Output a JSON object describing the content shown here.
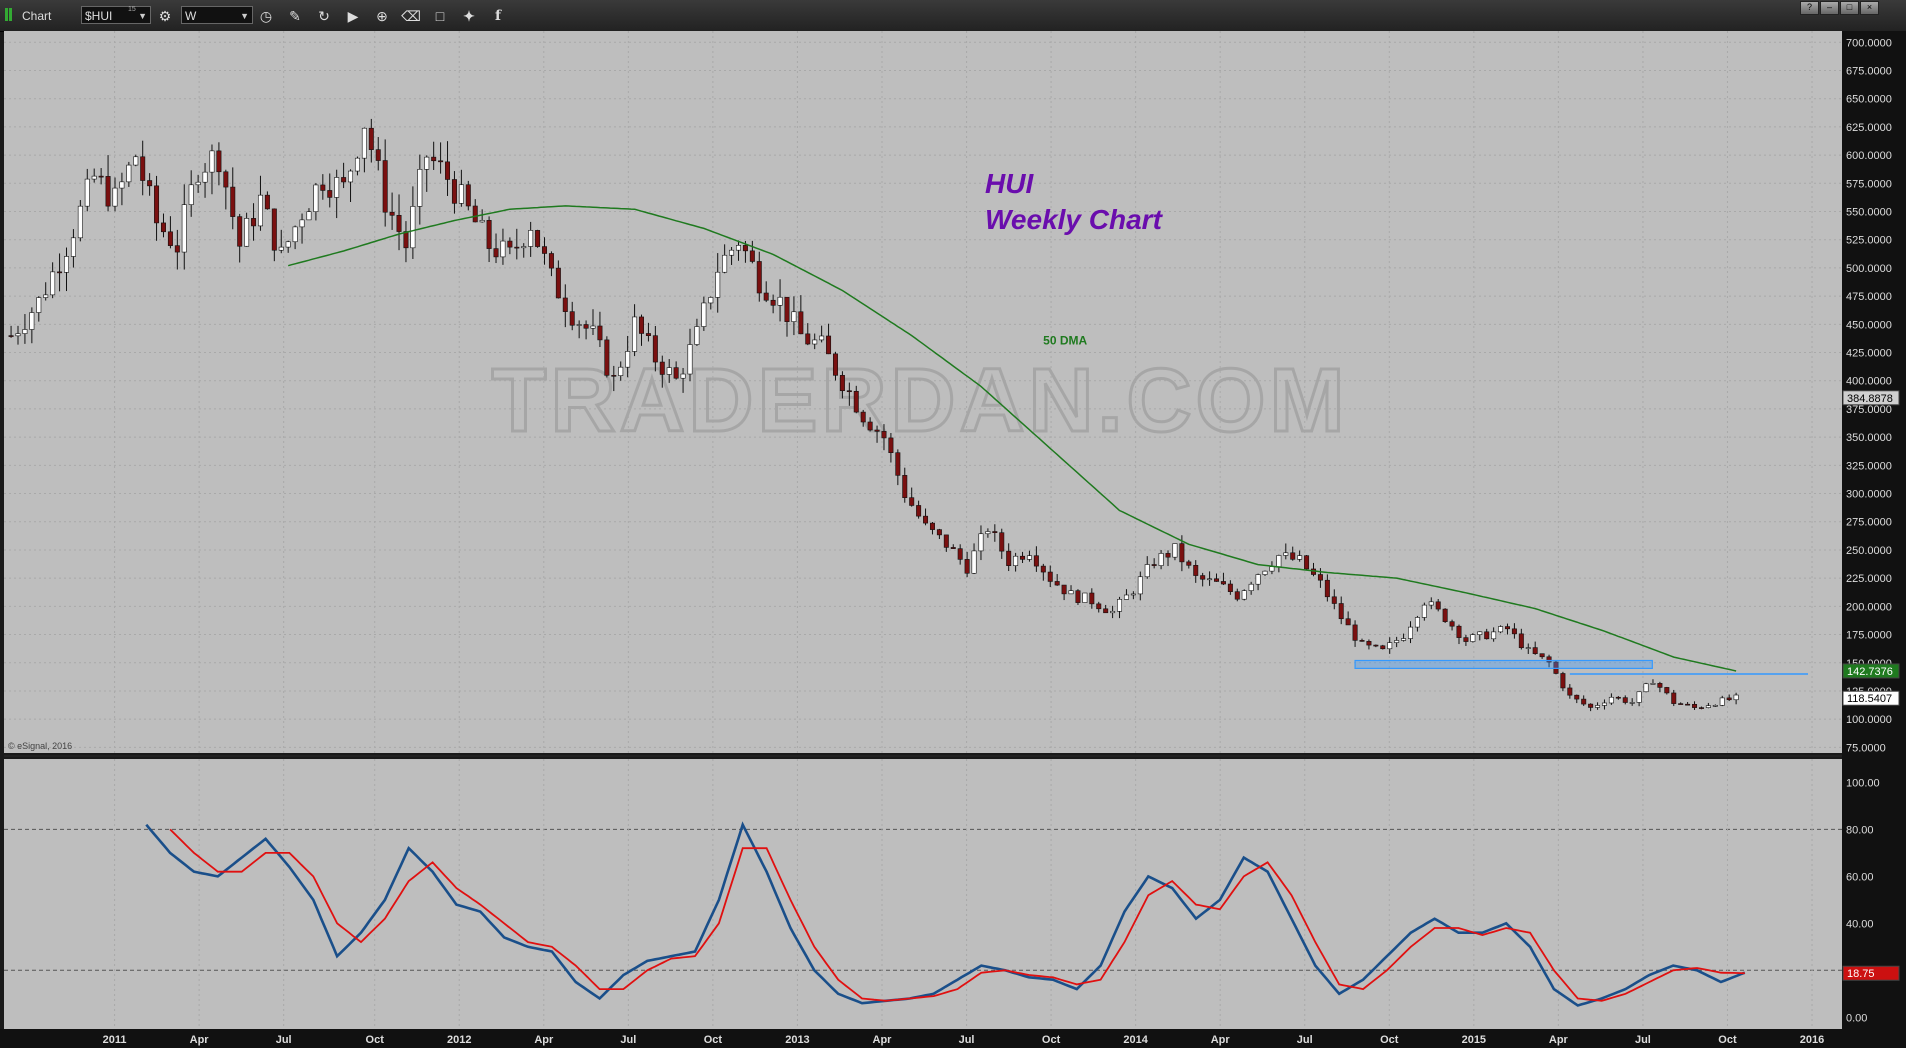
{
  "toolbar": {
    "app_label": "Chart",
    "symbol": "$HUI",
    "symbol_sup": "15",
    "interval": "W",
    "window_buttons": [
      "?",
      "–",
      "□",
      "×"
    ]
  },
  "colors": {
    "background": "#bebebe",
    "candle_up": "#ffffff",
    "candle_down": "#7a1010",
    "ma_line": "#1f7a1f",
    "osc_k": "#1a4f8a",
    "osc_d": "#e01010",
    "title": "#6a0dad",
    "support_zone": "#3399ff"
  },
  "chart_data": [
    {
      "type": "candlestick",
      "title": "HUI",
      "subtitle": "Weekly Chart",
      "watermark": "TRADERDAN.COM",
      "copyright": "© eSignal, 2016",
      "ma_label": "50 DMA",
      "ylim": [
        70,
        710
      ],
      "y_ticks": [
        "700.0000",
        "675.0000",
        "650.0000",
        "625.0000",
        "600.0000",
        "575.0000",
        "550.0000",
        "525.0000",
        "500.0000",
        "475.0000",
        "450.0000",
        "425.0000",
        "400.0000",
        "375.0000",
        "350.0000",
        "325.0000",
        "300.0000",
        "275.0000",
        "250.0000",
        "225.0000",
        "200.0000",
        "175.0000",
        "150.0000",
        "125.0000",
        "100.0000",
        "75.0000"
      ],
      "x_labels": [
        "2011",
        "Apr",
        "Jul",
        "Oct",
        "2012",
        "Apr",
        "Jul",
        "Oct",
        "2013",
        "Apr",
        "Jul",
        "Oct",
        "2014",
        "Apr",
        "Jul",
        "Oct",
        "2015",
        "Apr",
        "Jul",
        "Oct",
        "2016"
      ],
      "price_badges": [
        {
          "label": "384.8878",
          "value": 384.89,
          "color": "#cfcfcf"
        },
        {
          "label": "142.7376",
          "value": 142.74,
          "color": "#1f7a1f"
        },
        {
          "label": "118.5407",
          "value": 118.54,
          "color": "#ffffff"
        }
      ],
      "close_path": [
        [
          0,
          440
        ],
        [
          4,
          470
        ],
        [
          8,
          520
        ],
        [
          12,
          580
        ],
        [
          15,
          560
        ],
        [
          18,
          600
        ],
        [
          21,
          540
        ],
        [
          24,
          520
        ],
        [
          27,
          590
        ],
        [
          30,
          600
        ],
        [
          33,
          520
        ],
        [
          36,
          560
        ],
        [
          39,
          510
        ],
        [
          42,
          550
        ],
        [
          45,
          580
        ],
        [
          48,
          570
        ],
        [
          51,
          630
        ],
        [
          54,
          560
        ],
        [
          57,
          520
        ],
        [
          60,
          600
        ],
        [
          63,
          580
        ],
        [
          66,
          550
        ],
        [
          69,
          520
        ],
        [
          72,
          510
        ],
        [
          75,
          540
        ],
        [
          78,
          490
        ],
        [
          81,
          460
        ],
        [
          84,
          440
        ],
        [
          87,
          400
        ],
        [
          90,
          450
        ],
        [
          93,
          420
        ],
        [
          96,
          400
        ],
        [
          99,
          440
        ],
        [
          102,
          500
        ],
        [
          105,
          525
        ],
        [
          108,
          490
        ],
        [
          111,
          470
        ],
        [
          114,
          440
        ],
        [
          117,
          430
        ],
        [
          120,
          400
        ],
        [
          123,
          370
        ],
        [
          126,
          350
        ],
        [
          129,
          300
        ],
        [
          132,
          270
        ],
        [
          135,
          255
        ],
        [
          138,
          235
        ],
        [
          141,
          270
        ],
        [
          144,
          240
        ],
        [
          147,
          250
        ],
        [
          150,
          225
        ],
        [
          153,
          210
        ],
        [
          156,
          205
        ],
        [
          159,
          195
        ],
        [
          162,
          215
        ],
        [
          165,
          240
        ],
        [
          168,
          250
        ],
        [
          171,
          225
        ],
        [
          174,
          220
        ],
        [
          177,
          210
        ],
        [
          180,
          230
        ],
        [
          183,
          245
        ],
        [
          186,
          240
        ],
        [
          189,
          220
        ],
        [
          192,
          190
        ],
        [
          195,
          165
        ],
        [
          198,
          160
        ],
        [
          201,
          175
        ],
        [
          204,
          205
        ],
        [
          207,
          190
        ],
        [
          210,
          170
        ],
        [
          213,
          175
        ],
        [
          216,
          180
        ],
        [
          219,
          160
        ],
        [
          222,
          150
        ],
        [
          225,
          120
        ],
        [
          228,
          110
        ],
        [
          231,
          120
        ],
        [
          234,
          115
        ],
        [
          237,
          135
        ],
        [
          240,
          115
        ],
        [
          243,
          110
        ],
        [
          246,
          115
        ],
        [
          249,
          118.5
        ]
      ],
      "ma50_path": [
        [
          40,
          502
        ],
        [
          48,
          515
        ],
        [
          56,
          530
        ],
        [
          64,
          542
        ],
        [
          72,
          552
        ],
        [
          80,
          555
        ],
        [
          90,
          552
        ],
        [
          100,
          535
        ],
        [
          110,
          512
        ],
        [
          120,
          480
        ],
        [
          130,
          440
        ],
        [
          140,
          395
        ],
        [
          150,
          340
        ],
        [
          160,
          285
        ],
        [
          170,
          255
        ],
        [
          180,
          237
        ],
        [
          190,
          230
        ],
        [
          200,
          225
        ],
        [
          210,
          212
        ],
        [
          220,
          198
        ],
        [
          230,
          178
        ],
        [
          240,
          155
        ],
        [
          249,
          142.7
        ]
      ],
      "support_zone": {
        "from": 145,
        "to": 152,
        "start_week": 194,
        "end_week": 260
      },
      "resistance_line": {
        "value": 140,
        "start_week": 225,
        "end_week": 260
      }
    },
    {
      "type": "line",
      "title": "",
      "ylim": [
        -5,
        110
      ],
      "y_ticks": [
        "100.00",
        "80.00",
        "60.00",
        "40.00",
        "20.00",
        "0.00"
      ],
      "reference_lines": [
        80,
        20
      ],
      "value_badge": {
        "label": "18.75",
        "value": 18.75
      },
      "series": [
        {
          "points": [
            [
              17,
              82
            ],
            [
              20,
              70
            ],
            [
              23,
              62
            ],
            [
              26,
              60
            ],
            [
              29,
              68
            ],
            [
              32,
              76
            ],
            [
              35,
              64
            ],
            [
              38,
              50
            ],
            [
              41,
              26
            ],
            [
              44,
              36
            ],
            [
              47,
              50
            ],
            [
              50,
              72
            ],
            [
              53,
              62
            ],
            [
              56,
              48
            ],
            [
              59,
              45
            ],
            [
              62,
              34
            ],
            [
              65,
              30
            ],
            [
              68,
              28
            ],
            [
              71,
              15
            ],
            [
              74,
              8
            ],
            [
              77,
              18
            ],
            [
              80,
              24
            ],
            [
              83,
              26
            ],
            [
              86,
              28
            ],
            [
              89,
              50
            ],
            [
              92,
              82
            ],
            [
              95,
              62
            ],
            [
              98,
              38
            ],
            [
              101,
              20
            ],
            [
              104,
              10
            ],
            [
              107,
              6
            ],
            [
              110,
              7
            ],
            [
              113,
              8
            ],
            [
              116,
              10
            ],
            [
              119,
              16
            ],
            [
              122,
              22
            ],
            [
              125,
              20
            ],
            [
              128,
              17
            ],
            [
              131,
              16
            ],
            [
              134,
              12
            ],
            [
              137,
              22
            ],
            [
              140,
              45
            ],
            [
              143,
              60
            ],
            [
              146,
              55
            ],
            [
              149,
              42
            ],
            [
              152,
              50
            ],
            [
              155,
              68
            ],
            [
              158,
              62
            ],
            [
              161,
              42
            ],
            [
              164,
              22
            ],
            [
              167,
              10
            ],
            [
              170,
              16
            ],
            [
              173,
              26
            ],
            [
              176,
              36
            ],
            [
              179,
              42
            ],
            [
              182,
              36
            ],
            [
              185,
              36
            ],
            [
              188,
              40
            ],
            [
              191,
              30
            ],
            [
              194,
              12
            ],
            [
              197,
              5
            ],
            [
              200,
              8
            ],
            [
              203,
              12
            ],
            [
              206,
              18
            ],
            [
              209,
              22
            ],
            [
              212,
              20
            ],
            [
              215,
              15
            ],
            [
              218,
              19
            ]
          ]
        },
        {
          "points": [
            [
              20,
              80
            ],
            [
              23,
              70
            ],
            [
              26,
              62
            ],
            [
              29,
              62
            ],
            [
              32,
              70
            ],
            [
              35,
              70
            ],
            [
              38,
              60
            ],
            [
              41,
              40
            ],
            [
              44,
              32
            ],
            [
              47,
              42
            ],
            [
              50,
              58
            ],
            [
              53,
              66
            ],
            [
              56,
              55
            ],
            [
              59,
              48
            ],
            [
              62,
              40
            ],
            [
              65,
              32
            ],
            [
              68,
              30
            ],
            [
              71,
              22
            ],
            [
              74,
              12
            ],
            [
              77,
              12
            ],
            [
              80,
              20
            ],
            [
              83,
              25
            ],
            [
              86,
              26
            ],
            [
              89,
              40
            ],
            [
              92,
              72
            ],
            [
              95,
              72
            ],
            [
              98,
              50
            ],
            [
              101,
              30
            ],
            [
              104,
              16
            ],
            [
              107,
              8
            ],
            [
              110,
              7
            ],
            [
              113,
              8
            ],
            [
              116,
              9
            ],
            [
              119,
              12
            ],
            [
              122,
              19
            ],
            [
              125,
              20
            ],
            [
              128,
              18
            ],
            [
              131,
              17
            ],
            [
              134,
              14
            ],
            [
              137,
              16
            ],
            [
              140,
              32
            ],
            [
              143,
              52
            ],
            [
              146,
              58
            ],
            [
              149,
              48
            ],
            [
              152,
              46
            ],
            [
              155,
              60
            ],
            [
              158,
              66
            ],
            [
              161,
              52
            ],
            [
              164,
              32
            ],
            [
              167,
              14
            ],
            [
              170,
              12
            ],
            [
              173,
              20
            ],
            [
              176,
              30
            ],
            [
              179,
              38
            ],
            [
              182,
              38
            ],
            [
              185,
              35
            ],
            [
              188,
              38
            ],
            [
              191,
              36
            ],
            [
              194,
              20
            ],
            [
              197,
              8
            ],
            [
              200,
              7
            ],
            [
              203,
              10
            ],
            [
              206,
              15
            ],
            [
              209,
              20
            ],
            [
              212,
              21
            ],
            [
              215,
              19
            ],
            [
              218,
              18.75
            ]
          ]
        }
      ]
    }
  ]
}
